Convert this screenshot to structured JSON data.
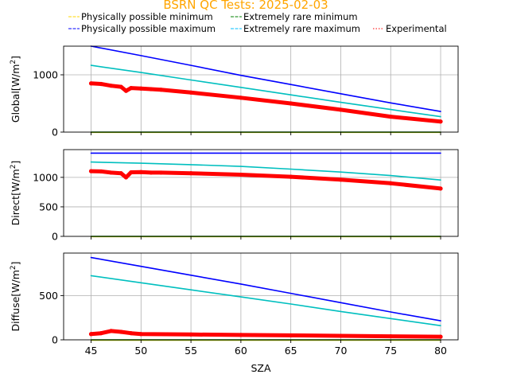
{
  "chart_data": {
    "type": "line",
    "title": "BSRN QC Tests: 2025-02-03",
    "title_color": "#ffa500",
    "xlabel": "SZA",
    "shared_x_ticks": [
      "45",
      "50",
      "55",
      "60",
      "65",
      "70",
      "75",
      "80"
    ],
    "xlim": [
      42.25,
      81.75
    ],
    "grid": true,
    "legend": {
      "placement": "top",
      "entries": [
        {
          "label": "Physically possible minimum",
          "color": "#ffd700",
          "style": "dashed"
        },
        {
          "label": "Physically possible maximum",
          "color": "#0000ff",
          "style": "dashed"
        },
        {
          "label": "Extremely rare minimum",
          "color": "#008000",
          "style": "dashed"
        },
        {
          "label": "Extremely rare maximum",
          "color": "#00bfff",
          "style": "dashed"
        },
        {
          "label": "Experimental",
          "color": "#ff0000",
          "style": "dotted"
        }
      ]
    },
    "panels": [
      {
        "ylabel": "Global",
        "yunit": "[W/m",
        "yunit_sup": "2",
        "yunit_end": "]",
        "ylim": [
          0,
          1500
        ],
        "yticks": [
          "0",
          "1000"
        ],
        "series": [
          {
            "name": "Physically possible minimum",
            "color": "#ffd700",
            "x": [
              45,
              80
            ],
            "y": [
              -4,
              -4
            ]
          },
          {
            "name": "Extremely rare minimum",
            "color": "#008000",
            "x": [
              45,
              80
            ],
            "y": [
              0,
              0
            ]
          },
          {
            "name": "Physically possible maximum",
            "color": "#0000ff",
            "x": [
              45,
              50,
              55,
              60,
              65,
              70,
              75,
              80
            ],
            "y": [
              1500,
              1335,
              1165,
              990,
              830,
              670,
              510,
              360
            ]
          },
          {
            "name": "Extremely rare maximum",
            "color": "#00bfbf",
            "x": [
              45,
              50,
              55,
              60,
              65,
              70,
              75,
              80
            ],
            "y": [
              1165,
              1040,
              910,
              780,
              650,
              520,
              395,
              270
            ]
          },
          {
            "name": "Experimental",
            "color": "#ff0000",
            "x": [
              45,
              46,
              47,
              48,
              48.5,
              49,
              50,
              51,
              52,
              55,
              60,
              65,
              70,
              75,
              80
            ],
            "y": [
              850,
              840,
              810,
              790,
              720,
              770,
              760,
              750,
              740,
              690,
              600,
              500,
              390,
              270,
              185
            ]
          }
        ]
      },
      {
        "ylabel": "Direct",
        "yunit": "[W/m",
        "yunit_sup": "2",
        "yunit_end": "]",
        "ylim": [
          0,
          1470
        ],
        "yticks": [
          "0",
          "500",
          "1000"
        ],
        "series": [
          {
            "name": "Physically possible minimum",
            "color": "#ffd700",
            "x": [
              45,
              80
            ],
            "y": [
              -4,
              -4
            ]
          },
          {
            "name": "Extremely rare minimum",
            "color": "#008000",
            "x": [
              45,
              80
            ],
            "y": [
              0,
              0
            ]
          },
          {
            "name": "Physically possible maximum",
            "color": "#0000ff",
            "x": [
              45,
              80
            ],
            "y": [
              1410,
              1410
            ]
          },
          {
            "name": "Extremely rare maximum",
            "color": "#00bfbf",
            "x": [
              45,
              50,
              55,
              60,
              65,
              70,
              75,
              80
            ],
            "y": [
              1260,
              1240,
              1215,
              1185,
              1140,
              1090,
              1030,
              955
            ]
          },
          {
            "name": "Experimental",
            "color": "#ff0000",
            "x": [
              45,
              46,
              47,
              48,
              48.5,
              49,
              50,
              51,
              52,
              55,
              60,
              65,
              70,
              75,
              80
            ],
            "y": [
              1105,
              1100,
              1080,
              1070,
              1000,
              1085,
              1090,
              1080,
              1080,
              1070,
              1045,
              1010,
              960,
              900,
              810
            ]
          }
        ]
      },
      {
        "ylabel": "Diffuse",
        "yunit": "[W/m",
        "yunit_sup": "2",
        "yunit_end": "]",
        "ylim": [
          0,
          980
        ],
        "yticks": [
          "0",
          "500"
        ],
        "series": [
          {
            "name": "Physically possible minimum",
            "color": "#ffd700",
            "x": [
              45,
              80
            ],
            "y": [
              -4,
              -4
            ]
          },
          {
            "name": "Extremely rare minimum",
            "color": "#008000",
            "x": [
              45,
              80
            ],
            "y": [
              0,
              0
            ]
          },
          {
            "name": "Physically possible maximum",
            "color": "#0000ff",
            "x": [
              45,
              50,
              55,
              60,
              65,
              70,
              75,
              80
            ],
            "y": [
              930,
              830,
              730,
              630,
              525,
              420,
              315,
              215
            ]
          },
          {
            "name": "Extremely rare maximum",
            "color": "#00bfbf",
            "x": [
              45,
              50,
              55,
              60,
              65,
              70,
              75,
              80
            ],
            "y": [
              725,
              645,
              565,
              485,
              405,
              320,
              240,
              160
            ]
          },
          {
            "name": "Experimental",
            "color": "#ff0000",
            "x": [
              45,
              46,
              47,
              48,
              49,
              50,
              55,
              60,
              65,
              70,
              75,
              80
            ],
            "y": [
              65,
              75,
              100,
              90,
              75,
              65,
              60,
              55,
              50,
              45,
              40,
              35
            ]
          }
        ]
      }
    ]
  }
}
